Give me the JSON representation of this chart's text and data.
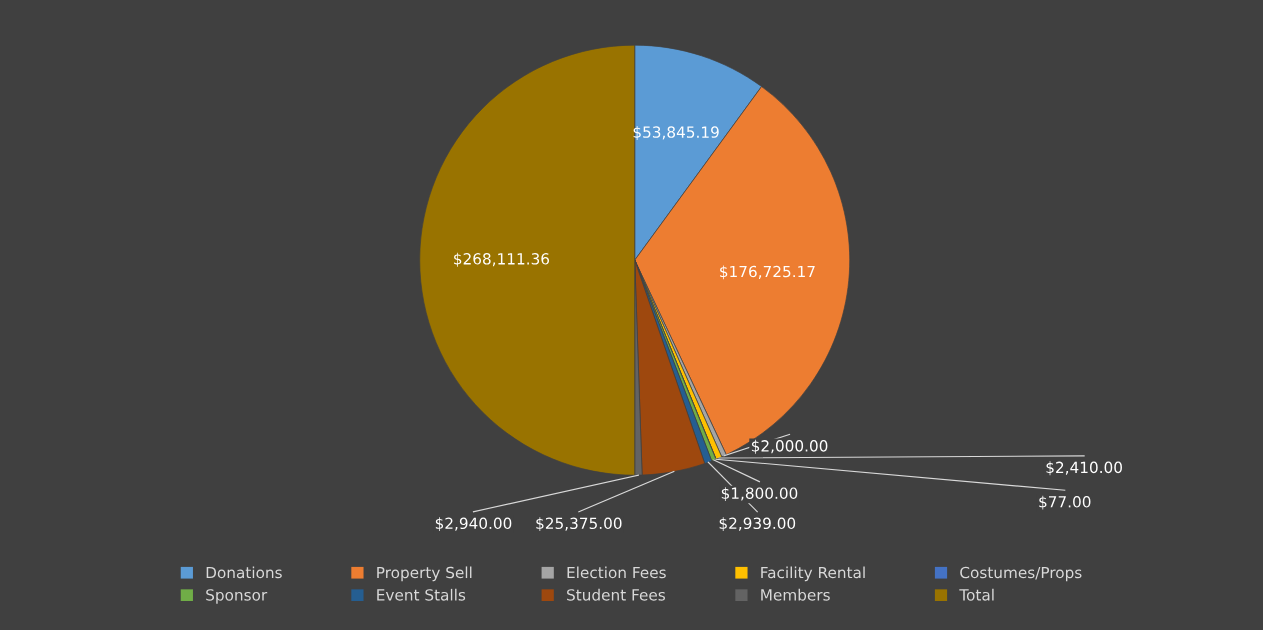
{
  "chart_data": {
    "type": "pie",
    "categories": [
      "Donations",
      "Property Sell",
      "Election Fees",
      "Facility Rental",
      "Costumes/Props",
      "Sponsor",
      "Event Stalls",
      "Student Fees",
      "Members",
      "Total"
    ],
    "values": [
      53845.19,
      176725.17,
      2000,
      2410,
      77,
      1800,
      2939,
      25375,
      2940,
      268111.36
    ],
    "value_labels": [
      "$53,845.19",
      "$176,725.17",
      "$2,000.00",
      "$2,410.00",
      "$77.00",
      "$1,800.00",
      "$2,939.00",
      "$25,375.00",
      "$2,940.00",
      "$268,111.36"
    ],
    "colors": [
      "#5b9bd5",
      "#ed7d31",
      "#a5a5a5",
      "#ffc000",
      "#4472c4",
      "#70ad47",
      "#255e91",
      "#9e480e",
      "#636363",
      "#997300"
    ],
    "legend": "bottom"
  }
}
